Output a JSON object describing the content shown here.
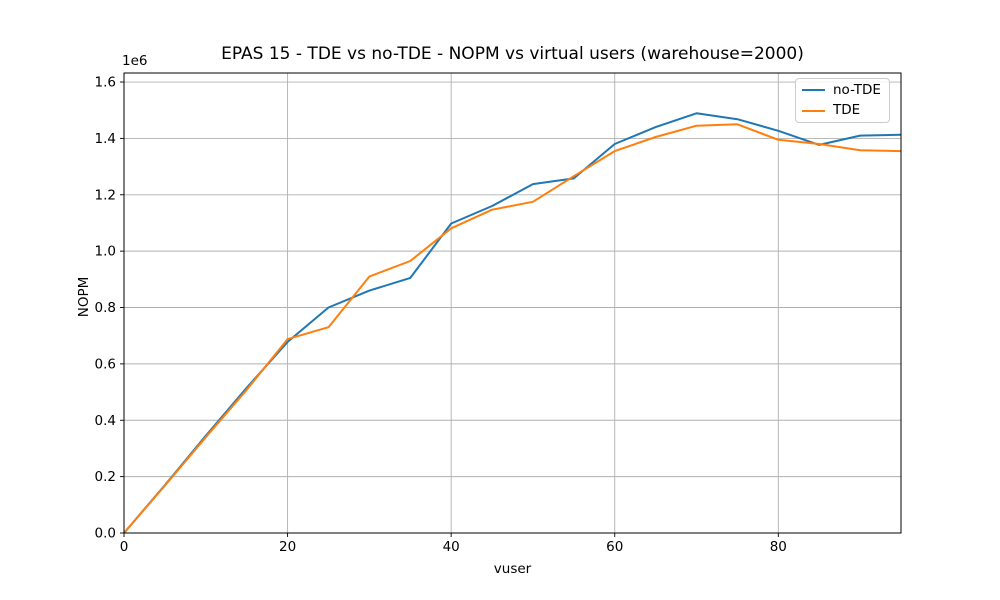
{
  "chart_data": {
    "type": "line",
    "title": "EPAS 15 - TDE vs no-TDE - NOPM vs virtual users (warehouse=2000)",
    "xlabel": "vuser",
    "ylabel": "NOPM",
    "offset_text": "1e6",
    "grid": true,
    "legend_position": "upper right",
    "xlim": [
      0,
      95
    ],
    "ylim": [
      0,
      1632000
    ],
    "xticks": {
      "values": [
        0,
        20,
        40,
        60,
        80
      ],
      "labels": [
        "0",
        "20",
        "40",
        "60",
        "80"
      ]
    },
    "yticks": {
      "values": [
        0,
        200000,
        400000,
        600000,
        800000,
        1000000,
        1200000,
        1400000,
        1600000
      ],
      "labels": [
        "0.0",
        "0.2",
        "0.4",
        "0.6",
        "0.8",
        "1.0",
        "1.2",
        "1.4",
        "1.6"
      ]
    },
    "x": [
      0,
      5,
      10,
      15,
      20,
      25,
      30,
      35,
      40,
      45,
      50,
      55,
      60,
      65,
      70,
      75,
      80,
      85,
      90,
      95
    ],
    "series": [
      {
        "name": "no-TDE",
        "color": "#1f77b4",
        "values": [
          0,
          170000,
          345000,
          515000,
          678000,
          800000,
          860000,
          905000,
          1098000,
          1160000,
          1238000,
          1258000,
          1380000,
          1440000,
          1489000,
          1468000,
          1427000,
          1377000,
          1410000,
          1413000
        ]
      },
      {
        "name": "TDE",
        "color": "#ff7f0e",
        "values": [
          0,
          168000,
          340000,
          508000,
          688000,
          730000,
          910000,
          965000,
          1081000,
          1147000,
          1175000,
          1266000,
          1355000,
          1405000,
          1445000,
          1450000,
          1395000,
          1380000,
          1358000,
          1355000
        ]
      }
    ]
  },
  "colors": {
    "background": "#ffffff",
    "grid": "#b0b0b0",
    "spine": "#000000",
    "legend_border": "#cccccc"
  }
}
